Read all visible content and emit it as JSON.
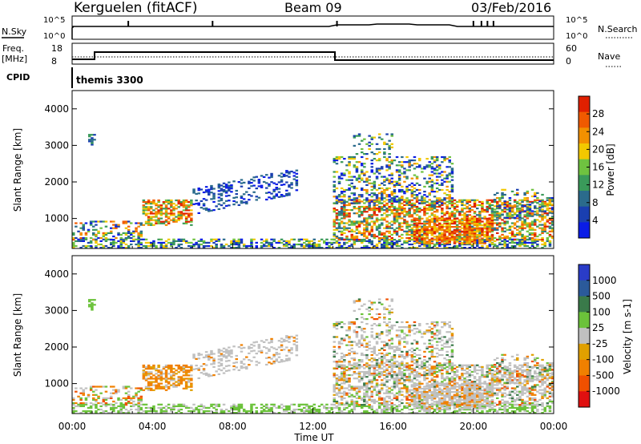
{
  "header": {
    "station": "Kerguelen (fitACF)",
    "beam": "Beam 09",
    "date": "03/Feb/2016"
  },
  "top_panels": {
    "nsky_label": "N.Sky",
    "nsky_ticks": [
      "10^5",
      "10^0"
    ],
    "nsearch_label": "N.Search",
    "nsearch_ticks": [
      "10^5",
      "10^0"
    ],
    "freq_label_1": "Freq.",
    "freq_label_2": "[MHz]",
    "freq_ticks": [
      "18",
      "8"
    ],
    "nave_label": "Nave",
    "nave_ticks": [
      "60",
      "0"
    ],
    "cpid_label": "CPID",
    "cpid_value": "themis 3300"
  },
  "colors": {
    "power": [
      "#0a1ce6",
      "#1a3fb0",
      "#2b6b8c",
      "#3a9a5a",
      "#6fc240",
      "#f2c800",
      "#f29000",
      "#f05a00",
      "#e02000"
    ],
    "velocity": [
      "#2a3cc8",
      "#2b5a9a",
      "#3a7a4a",
      "#6bc23a",
      "#c0c0c0",
      "#e0a000",
      "#f08000",
      "#f05000",
      "#e01010"
    ]
  },
  "chart_data": [
    {
      "type": "heatmap",
      "title": "",
      "xlabel": "Time UT",
      "ylabel": "Slant Range [km]",
      "x_ticks": [
        "00:00",
        "04:00",
        "08:00",
        "12:00",
        "16:00",
        "20:00",
        "00:00"
      ],
      "y_ticks": [
        "1000",
        "2000",
        "3000",
        "4000"
      ],
      "ylim": [
        180,
        4500
      ],
      "colorbar_label": "Power [dB]",
      "colorbar_ticks": [
        "4",
        "8",
        "12",
        "16",
        "20",
        "24",
        "28"
      ],
      "colorbar_range": [
        0,
        32
      ]
    },
    {
      "type": "heatmap",
      "title": "",
      "xlabel": "Time UT",
      "ylabel": "Slant Range [km]",
      "x_ticks": [
        "00:00",
        "04:00",
        "08:00",
        "12:00",
        "16:00",
        "20:00",
        "00:00"
      ],
      "y_ticks": [
        "1000",
        "2000",
        "3000",
        "4000"
      ],
      "ylim": [
        180,
        4500
      ],
      "colorbar_label": "Velocity [m s-1]",
      "colorbar_ticks": [
        "1000",
        "500",
        "100",
        "25",
        "-25",
        "-100",
        "-500",
        "-1000"
      ]
    }
  ]
}
